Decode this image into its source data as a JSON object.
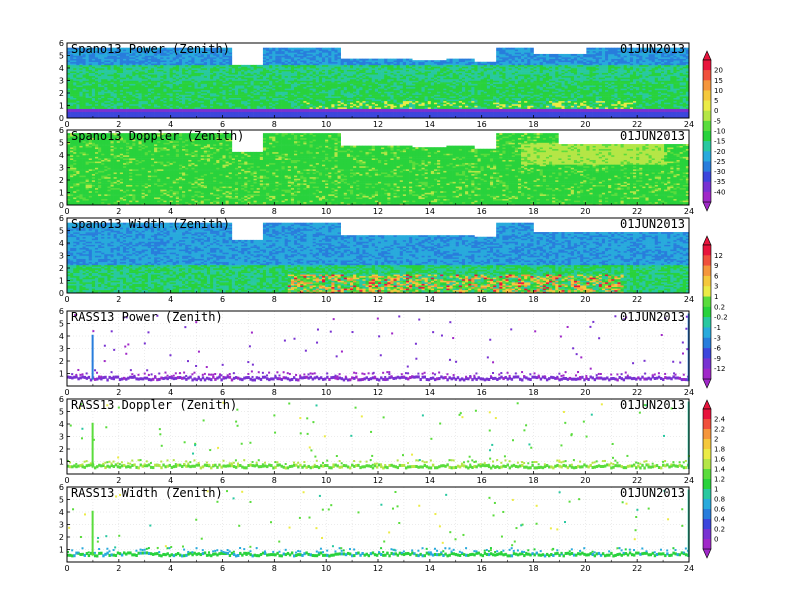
{
  "chart_data": [
    {
      "type": "heatmap",
      "title": "Spano13 Power (Zenith)",
      "date": "01JUN2013",
      "x_ticks": [
        0,
        2,
        4,
        6,
        8,
        10,
        12,
        14,
        16,
        18,
        20,
        22,
        24
      ],
      "y_ticks": [
        0,
        1,
        2,
        3,
        4,
        5,
        6
      ],
      "xlim": [
        0,
        24
      ],
      "ylim": [
        0,
        6
      ],
      "colorbar": "power",
      "pattern": "spano_power"
    },
    {
      "type": "heatmap",
      "title": "Spano13 Doppler (Zenith)",
      "date": "01JUN2013",
      "x_ticks": [
        0,
        2,
        4,
        6,
        8,
        10,
        12,
        14,
        16,
        18,
        20,
        22,
        24
      ],
      "y_ticks": [
        0,
        1,
        2,
        3,
        4,
        5,
        6
      ],
      "xlim": [
        0,
        24
      ],
      "ylim": [
        0,
        6
      ],
      "colorbar": "power",
      "pattern": "spano_doppler"
    },
    {
      "type": "heatmap",
      "title": "Spano13 Width (Zenith)",
      "date": "01JUN2013",
      "x_ticks": [
        0,
        2,
        4,
        6,
        8,
        10,
        12,
        14,
        16,
        18,
        20,
        22,
        24
      ],
      "y_ticks": [
        0,
        1,
        2,
        3,
        4,
        5,
        6
      ],
      "xlim": [
        0,
        24
      ],
      "ylim": [
        0,
        6
      ],
      "colorbar": "doppler",
      "pattern": "spano_width"
    },
    {
      "type": "heatmap",
      "title": "RASS13 Power (Zenith)",
      "date": "01JUN2013",
      "x_ticks": [
        0,
        2,
        4,
        6,
        8,
        10,
        12,
        14,
        16,
        18,
        20,
        22,
        24
      ],
      "y_ticks": [
        1,
        2,
        3,
        4,
        5,
        6
      ],
      "xlim": [
        0,
        24
      ],
      "ylim": [
        0,
        6
      ],
      "colorbar": "doppler",
      "pattern": "rass_power"
    },
    {
      "type": "heatmap",
      "title": "RASS13 Doppler (Zenith)",
      "date": "01JUN2013",
      "x_ticks": [
        0,
        2,
        4,
        6,
        8,
        10,
        12,
        14,
        16,
        18,
        20,
        22,
        24
      ],
      "y_ticks": [
        1,
        2,
        3,
        4,
        5,
        6
      ],
      "xlim": [
        0,
        24
      ],
      "ylim": [
        0,
        6
      ],
      "colorbar": "width",
      "pattern": "rass_doppler"
    },
    {
      "type": "heatmap",
      "title": "RASS13 Width (Zenith)",
      "date": "01JUN2013",
      "x_ticks": [
        0,
        2,
        4,
        6,
        8,
        10,
        12,
        14,
        16,
        18,
        20,
        22,
        24
      ],
      "y_ticks": [
        1,
        2,
        3,
        4,
        5,
        6
      ],
      "xlim": [
        0,
        24
      ],
      "ylim": [
        0,
        6
      ],
      "colorbar": "width",
      "pattern": "rass_width"
    }
  ],
  "colorbars": [
    {
      "id": "power",
      "labels": [
        "20",
        "15",
        "10",
        "5",
        "0",
        "-5",
        "-10",
        "-15",
        "-20",
        "-25",
        "-30",
        "-35",
        "-40"
      ],
      "colors": [
        "#e8143c",
        "#f0503c",
        "#f5963c",
        "#f5c83c",
        "#ebeb46",
        "#b4e646",
        "#5adc3c",
        "#28d23c",
        "#28c8a0",
        "#28aadc",
        "#287ddc",
        "#3c46dc",
        "#7832d2",
        "#a028c8"
      ]
    },
    {
      "id": "doppler",
      "labels": [
        "12",
        "9",
        "6",
        "3",
        "1",
        "0.2",
        "-0.2",
        "-1",
        "-3",
        "-6",
        "-9",
        "-12"
      ],
      "colors": [
        "#e8143c",
        "#f0503c",
        "#f5963c",
        "#f5c83c",
        "#ebeb46",
        "#5adc3c",
        "#28d23c",
        "#28c8a0",
        "#28aadc",
        "#287ddc",
        "#3c46dc",
        "#7832d2",
        "#a028c8"
      ]
    },
    {
      "id": "width",
      "labels": [
        "2.4",
        "2.2",
        "2",
        "1.8",
        "1.6",
        "1.4",
        "1.2",
        "1",
        "0.8",
        "0.6",
        "0.4",
        "0.2",
        "0"
      ],
      "colors": [
        "#e8143c",
        "#f0503c",
        "#f5963c",
        "#f5c83c",
        "#ebeb46",
        "#b4e646",
        "#5adc3c",
        "#28d23c",
        "#28c8a0",
        "#28aadc",
        "#287ddc",
        "#3c46dc",
        "#7832d2",
        "#a028c8"
      ]
    }
  ]
}
